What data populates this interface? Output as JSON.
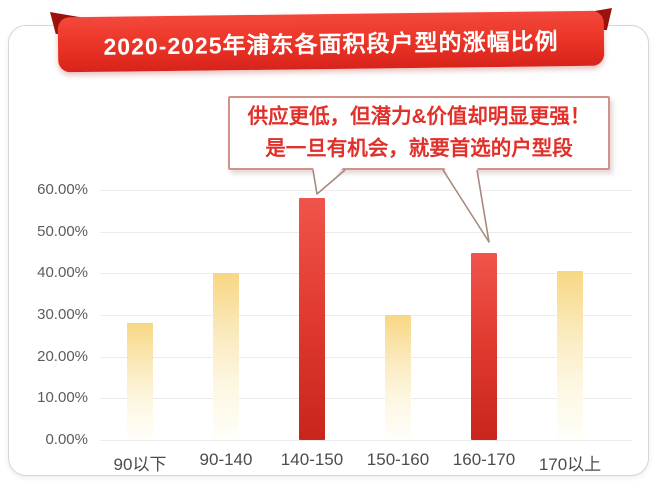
{
  "banner": {
    "title": "2020-2025年浦东各面积段户型的涨幅比例"
  },
  "callout": {
    "line1": "供应更低，但潜力&价值却明显更强！",
    "line2": "是一旦有机会，就要首选的户型段",
    "points_to": [
      "140-150",
      "160-170"
    ]
  },
  "chart_data": {
    "type": "bar",
    "title": "2020-2025年浦东各面积段户型的涨幅比例",
    "categories": [
      "90以下",
      "90-140",
      "140-150",
      "150-160",
      "160-170",
      "170以上"
    ],
    "values": [
      28,
      40,
      58,
      30,
      45,
      40.5
    ],
    "unit": "%",
    "highlight_indexes": [
      2,
      4
    ],
    "annotation": "供应更低，但潜力&价值却明显更强！是一旦有机会，就要首选的户型段",
    "xlabel": "",
    "ylabel": "",
    "ylim": [
      0,
      60
    ],
    "ytick_step": 10,
    "ytick_labels": [
      "0.00%",
      "10.00%",
      "20.00%",
      "30.00%",
      "40.00%",
      "50.00%",
      "60.00%"
    ],
    "grid": true,
    "legend": false
  },
  "colors": {
    "banner_red": "#e93325",
    "banner_fold": "#9c120c",
    "bar_yellow": "#f7d783",
    "bar_red": "#e23c31",
    "callout_text": "#e1302a",
    "callout_border": "#d0928a",
    "axis_label": "#5c5c5c",
    "gridline": "#ececec"
  }
}
